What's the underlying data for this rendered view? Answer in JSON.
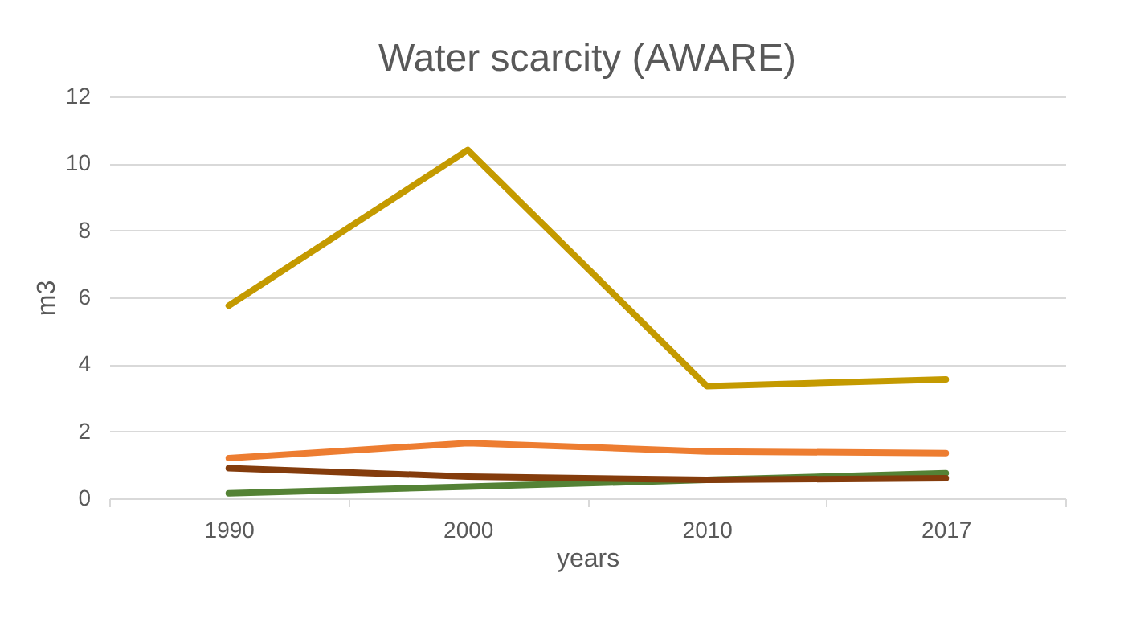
{
  "chart_data": {
    "type": "line",
    "title": "Water scarcity (AWARE)",
    "xlabel": "years",
    "ylabel": "m3",
    "categories": [
      "1990",
      "2000",
      "2010",
      "2017"
    ],
    "series": [
      {
        "color": "#c49a00",
        "values": [
          5.75,
          10.4,
          3.35,
          3.55
        ]
      },
      {
        "color": "#ed7d31",
        "values": [
          1.2,
          1.65,
          1.4,
          1.35
        ]
      },
      {
        "color": "#548235",
        "values": [
          0.15,
          0.35,
          0.55,
          0.75
        ]
      },
      {
        "color": "#843c0c",
        "values": [
          0.9,
          0.65,
          0.55,
          0.6
        ]
      }
    ],
    "ylim": [
      0,
      12
    ],
    "yticks": [
      0,
      2,
      4,
      6,
      8,
      10,
      12
    ],
    "grid": "y",
    "legend": false,
    "marker": "none",
    "line_style": "solid"
  }
}
